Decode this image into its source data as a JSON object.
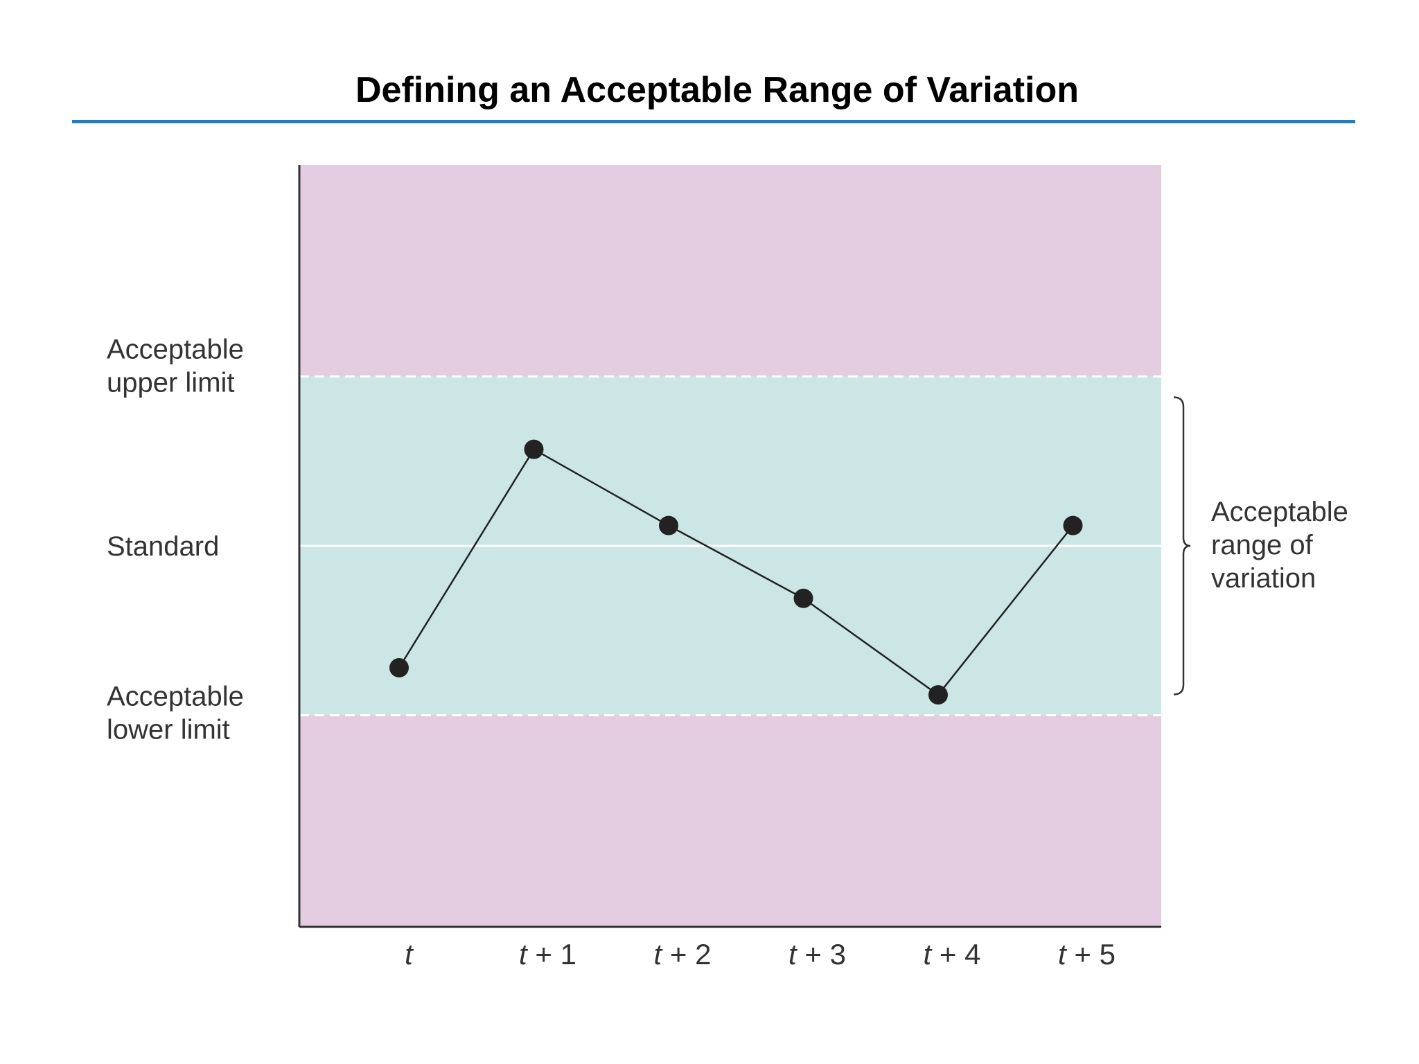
{
  "title": "Defining an Acceptable Range of Variation",
  "colors": {
    "accent_rule": "#1f7fbf",
    "out_of_range": "#e4cde0",
    "in_range": "#cbe6e4",
    "marker": "#222222",
    "line": "#222222"
  },
  "chart_data": {
    "type": "line",
    "title": "Defining an Acceptable Range of Variation",
    "xlabel": "",
    "ylabel": "",
    "categories": [
      "t",
      "t + 1",
      "t + 2",
      "t + 3",
      "t + 4",
      "t + 5"
    ],
    "category_parts": [
      {
        "var": "t",
        "rest": ""
      },
      {
        "var": "t",
        "rest": " + 1"
      },
      {
        "var": "t",
        "rest": " + 2"
      },
      {
        "var": "t",
        "rest": " + 3"
      },
      {
        "var": "t",
        "rest": " + 4"
      },
      {
        "var": "t",
        "rest": " + 5"
      }
    ],
    "ylim": [
      -2.25,
      2.25
    ],
    "standard": 0,
    "upper_limit": 1,
    "lower_limit": -1,
    "series": [
      {
        "values": [
          -0.72,
          0.57,
          0.12,
          -0.31,
          -0.88,
          0.12
        ]
      }
    ],
    "y_labels": {
      "upper": [
        "Acceptable",
        "upper limit"
      ],
      "standard": [
        "Standard"
      ],
      "lower": [
        "Acceptable",
        "lower limit"
      ]
    },
    "range_annotation": [
      "Acceptable",
      "range of",
      "variation"
    ],
    "grid": false,
    "legend": "none"
  }
}
